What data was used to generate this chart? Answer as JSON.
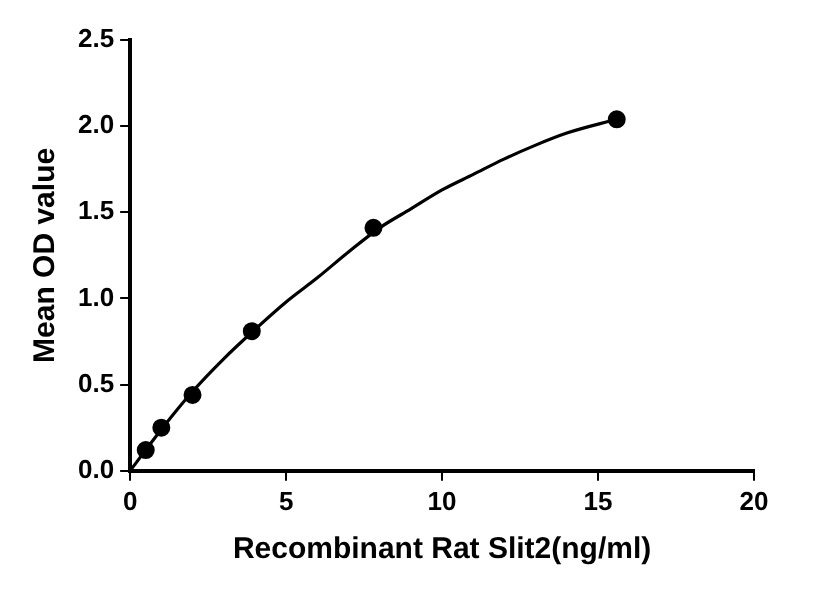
{
  "chart_data": {
    "type": "scatter",
    "xlabel": "Recombinant Rat Slit2(ng/ml)",
    "ylabel": "Mean OD value",
    "xlim": [
      0,
      20
    ],
    "xticks": [
      0,
      5,
      10,
      15,
      20
    ],
    "ylim": [
      0,
      2.5
    ],
    "yticks": [
      {
        "value": 0,
        "label": "0.0"
      },
      {
        "value": 0.5,
        "label": "0.5"
      },
      {
        "value": 1,
        "label": "1.0"
      },
      {
        "value": 1.5,
        "label": "1.5"
      },
      {
        "value": 2,
        "label": "2.0"
      },
      {
        "value": 2.5,
        "label": "2.5"
      }
    ],
    "grid": false,
    "legend": false,
    "series": [
      {
        "color": "#000000",
        "marker": "circle",
        "x": [
          0.5,
          1,
          2,
          3.9,
          7.8,
          15.6
        ],
        "values": [
          0.12,
          0.25,
          0.44,
          0.81,
          1.41,
          2.04
        ]
      },
      {
        "type": "line",
        "color": "#000000",
        "marker": "none",
        "x": [
          0,
          1,
          2,
          3,
          4,
          5,
          6,
          7,
          8,
          9,
          10,
          11,
          12,
          13,
          14,
          15.6
        ],
        "values": [
          0,
          0.24,
          0.46,
          0.65,
          0.82,
          0.98,
          1.12,
          1.27,
          1.41,
          1.52,
          1.63,
          1.72,
          1.81,
          1.89,
          1.96,
          2.04
        ]
      }
    ]
  }
}
